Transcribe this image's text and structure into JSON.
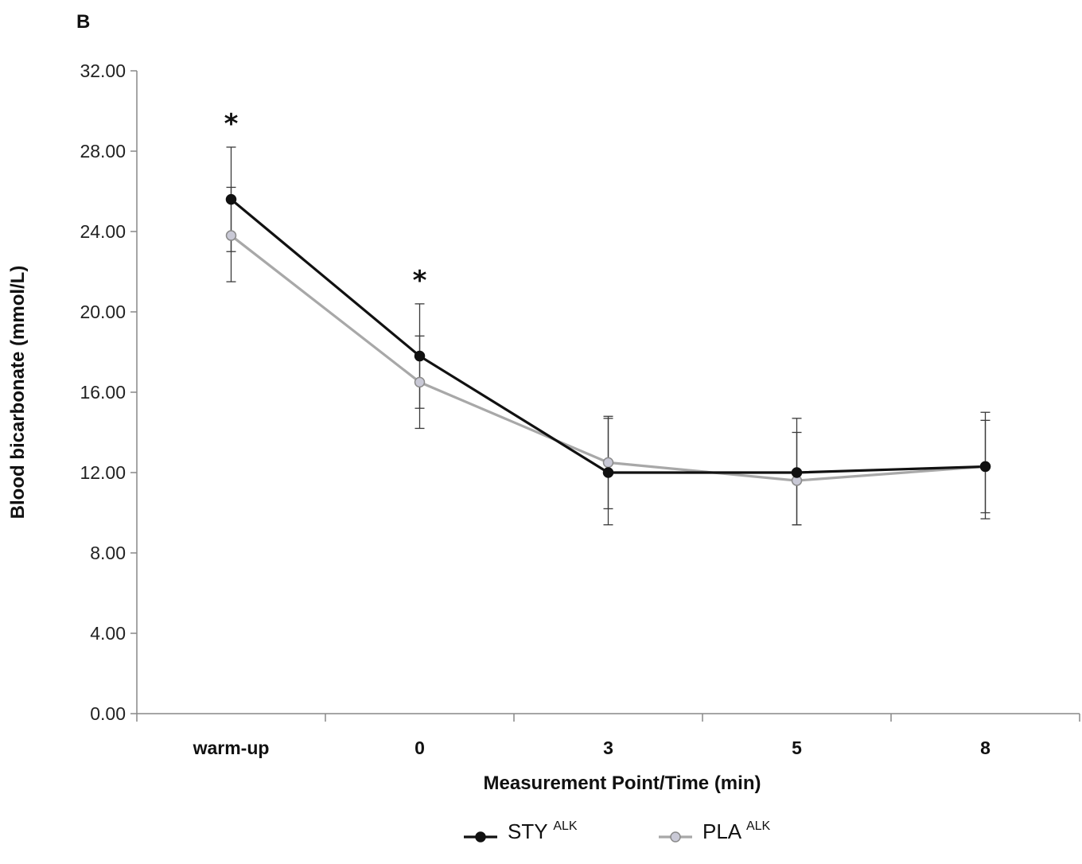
{
  "chart_data": {
    "type": "line",
    "panel_label": "B",
    "title": "",
    "xlabel": "Measurement Point/Time (min)",
    "ylabel": "Blood bicarbonate (mmol/L)",
    "categories": [
      "warm-up",
      "0",
      "3",
      "5",
      "8"
    ],
    "ylim": [
      0,
      32
    ],
    "yticks": [
      0,
      4,
      8,
      12,
      16,
      20,
      24,
      28,
      32
    ],
    "ytick_labels": [
      "0.00",
      "4.00",
      "8.00",
      "12.00",
      "16.00",
      "20.00",
      "24.00",
      "28.00",
      "32.00"
    ],
    "grid": false,
    "series": [
      {
        "name": "STY",
        "superscript": "ALK",
        "color": "#111111",
        "marker_fill": "#111111",
        "values": [
          25.6,
          17.8,
          12.0,
          12.0,
          12.3
        ],
        "error_upper": [
          28.2,
          20.4,
          14.7,
          14.0,
          14.6
        ],
        "error_lower": [
          23.0,
          15.2,
          9.4,
          9.4,
          10.0
        ]
      },
      {
        "name": "PLA",
        "superscript": "ALK",
        "color": "#a8a8a8",
        "marker_fill": "#c9c9d6",
        "values": [
          23.8,
          16.5,
          12.5,
          11.6,
          12.3
        ],
        "error_upper": [
          26.2,
          18.8,
          14.8,
          14.7,
          15.0
        ],
        "error_lower": [
          21.5,
          14.2,
          10.2,
          9.4,
          9.7
        ]
      }
    ],
    "annotations": [
      {
        "category": "warm-up",
        "text": "*"
      },
      {
        "category": "0",
        "text": "*"
      }
    ],
    "legend_position": "bottom"
  }
}
